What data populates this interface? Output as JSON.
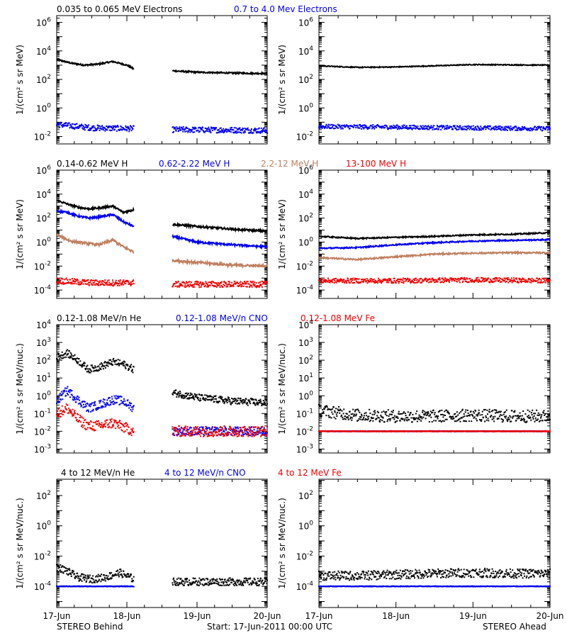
{
  "colors": {
    "black": "#000000",
    "blue": "#0000ee",
    "tan": "#c08060",
    "red": "#ee0000"
  },
  "footer": {
    "left": "STEREO Behind",
    "center": "Start: 17-Jun-2011 00:00 UTC",
    "right": "STEREO Ahead"
  },
  "chart_data": [
    {
      "type": "scatter",
      "panel": "electrons-behind",
      "yscale": "log",
      "ylim": [
        0.003,
        3000000
      ],
      "xlim": [
        0,
        3
      ],
      "xtick_labels": [
        "17-Jun",
        "18-Jun",
        "19-Jun",
        "20-Jun"
      ],
      "ylabel": "1/(cm² s sr MeV)",
      "yticks": [
        {
          "v": 0.01,
          "b": "10",
          "e": "-2"
        },
        {
          "v": 1,
          "b": "10",
          "e": "0"
        },
        {
          "v": 100,
          "b": "10",
          "e": "2"
        },
        {
          "v": 10000,
          "b": "10",
          "e": "4"
        },
        {
          "v": 1000000,
          "b": "10",
          "e": "6"
        }
      ],
      "legend": [
        {
          "text": "0.035 to 0.065 MeV Electrons",
          "color": "black"
        },
        {
          "text": "0.7 to 4.0 Mev Electrons",
          "color": "blue"
        }
      ],
      "gaps": [
        [
          1.1,
          1.65
        ]
      ],
      "series": [
        {
          "name": "0.035 to 0.065 MeV Electrons",
          "color": "black",
          "style": "line",
          "x": [
            0,
            0.2,
            0.4,
            0.6,
            0.8,
            1.0,
            1.1,
            1.65,
            2.0,
            2.5,
            3.0
          ],
          "y": [
            2500,
            1400,
            1000,
            1200,
            1800,
            1000,
            550,
            400,
            320,
            280,
            260
          ],
          "scatter": 0.05
        },
        {
          "name": "0.7 to 4.0 Mev Electrons",
          "color": "blue",
          "style": "dots",
          "x": [
            0,
            0.5,
            1.1,
            1.65,
            2.5,
            3.0
          ],
          "y": [
            0.07,
            0.04,
            0.035,
            0.03,
            0.028,
            0.026
          ],
          "scatter": 0.2
        }
      ]
    },
    {
      "type": "scatter",
      "panel": "electrons-ahead",
      "yscale": "log",
      "ylim": [
        0.003,
        3000000
      ],
      "xlim": [
        0,
        3
      ],
      "xtick_labels": [
        "17-Jun",
        "18-Jun",
        "19-Jun",
        "20-Jun"
      ],
      "ylabel": "1/(cm² s sr MeV)",
      "yticks": [
        {
          "v": 0.01,
          "b": "10",
          "e": "-2"
        },
        {
          "v": 1,
          "b": "10",
          "e": "0"
        },
        {
          "v": 100,
          "b": "10",
          "e": "2"
        },
        {
          "v": 10000,
          "b": "10",
          "e": "4"
        },
        {
          "v": 1000000,
          "b": "10",
          "e": "6"
        }
      ],
      "legend": [],
      "gaps": [],
      "series": [
        {
          "name": "0.035 to 0.065 MeV Electrons",
          "color": "black",
          "style": "line",
          "x": [
            0,
            0.5,
            1.0,
            1.5,
            2.0,
            2.5,
            3.0
          ],
          "y": [
            900,
            700,
            750,
            900,
            1100,
            1050,
            1000
          ],
          "scatter": 0.03
        },
        {
          "name": "0.7 to 4.0 Mev Electrons",
          "color": "blue",
          "style": "dots",
          "x": [
            0,
            1.0,
            2.0,
            3.0
          ],
          "y": [
            0.05,
            0.045,
            0.04,
            0.035
          ],
          "scatter": 0.15
        }
      ]
    },
    {
      "type": "scatter",
      "panel": "protons-behind",
      "yscale": "log",
      "ylim": [
        2e-05,
        1000000
      ],
      "xlim": [
        0,
        3
      ],
      "xtick_labels": [
        "17-Jun",
        "18-Jun",
        "19-Jun",
        "20-Jun"
      ],
      "ylabel": "1/(cm² s sr MeV)",
      "yticks": [
        {
          "v": 0.0001,
          "b": "10",
          "e": "-4"
        },
        {
          "v": 0.01,
          "b": "10",
          "e": "-2"
        },
        {
          "v": 1,
          "b": "10",
          "e": "0"
        },
        {
          "v": 100,
          "b": "10",
          "e": "2"
        },
        {
          "v": 10000,
          "b": "10",
          "e": "4"
        },
        {
          "v": 1000000,
          "b": "10",
          "e": "6"
        }
      ],
      "legend": [
        {
          "text": "0.14-0.62 MeV H",
          "color": "black"
        },
        {
          "text": "0.62-2.22 MeV H",
          "color": "blue"
        },
        {
          "text": "2.2-12 MeV H",
          "color": "tan"
        },
        {
          "text": "13-100 MeV H",
          "color": "red"
        }
      ],
      "gaps": [
        [
          1.1,
          1.65
        ]
      ],
      "series": [
        {
          "name": "0.14-0.62 MeV H",
          "color": "black",
          "style": "line",
          "x": [
            0,
            0.15,
            0.3,
            0.45,
            0.6,
            0.8,
            0.95,
            1.1,
            1.65,
            2.0,
            2.5,
            3.0
          ],
          "y": [
            3000,
            1500,
            800,
            600,
            700,
            1000,
            300,
            500,
            30,
            20,
            12,
            8
          ],
          "scatter": 0.08
        },
        {
          "name": "0.62-2.22 MeV H",
          "color": "blue",
          "style": "line",
          "x": [
            0,
            0.15,
            0.3,
            0.45,
            0.6,
            0.8,
            0.95,
            1.1,
            1.65,
            2.0,
            2.5,
            3.0
          ],
          "y": [
            400,
            300,
            150,
            100,
            120,
            200,
            50,
            20,
            3,
            1,
            0.6,
            0.4
          ],
          "scatter": 0.08
        },
        {
          "name": "2.2-12 MeV H",
          "color": "tan",
          "style": "line",
          "x": [
            0,
            0.2,
            0.4,
            0.6,
            0.8,
            0.95,
            1.1,
            1.65,
            2.0,
            2.5,
            3.0
          ],
          "y": [
            4,
            1.2,
            0.8,
            0.6,
            1.5,
            0.4,
            0.15,
            0.03,
            0.02,
            0.012,
            0.01
          ],
          "scatter": 0.1
        },
        {
          "name": "13-100 MeV H",
          "color": "red",
          "style": "dots",
          "x": [
            0,
            0.5,
            1.1,
            1.65,
            2.5,
            3.0
          ],
          "y": [
            0.0006,
            0.0004,
            0.0004,
            0.0003,
            0.0003,
            0.0003
          ],
          "scatter": 0.25
        }
      ]
    },
    {
      "type": "scatter",
      "panel": "protons-ahead",
      "yscale": "log",
      "ylim": [
        2e-05,
        1000000
      ],
      "xlim": [
        0,
        3
      ],
      "xtick_labels": [
        "17-Jun",
        "18-Jun",
        "19-Jun",
        "20-Jun"
      ],
      "ylabel": "1/(cm² s sr MeV)",
      "yticks": [
        {
          "v": 0.0001,
          "b": "10",
          "e": "-4"
        },
        {
          "v": 0.01,
          "b": "10",
          "e": "-2"
        },
        {
          "v": 1,
          "b": "10",
          "e": "0"
        },
        {
          "v": 100,
          "b": "10",
          "e": "2"
        },
        {
          "v": 10000,
          "b": "10",
          "e": "4"
        },
        {
          "v": 1000000,
          "b": "10",
          "e": "6"
        }
      ],
      "legend": [],
      "gaps": [],
      "series": [
        {
          "name": "0.14-0.62 MeV H",
          "color": "black",
          "style": "line",
          "x": [
            0,
            0.5,
            1.0,
            1.5,
            2.0,
            2.5,
            3.0
          ],
          "y": [
            3,
            2,
            2.5,
            3,
            4,
            4.5,
            6
          ],
          "scatter": 0.05
        },
        {
          "name": "0.62-2.22 MeV H",
          "color": "blue",
          "style": "line",
          "x": [
            0,
            0.5,
            1.0,
            1.5,
            2.0,
            2.5,
            3.0
          ],
          "y": [
            0.3,
            0.35,
            0.6,
            0.9,
            1.2,
            1.4,
            1.6
          ],
          "scatter": 0.05
        },
        {
          "name": "2.2-12 MeV H",
          "color": "tan",
          "style": "line",
          "x": [
            0,
            0.5,
            1.0,
            1.5,
            2.0,
            2.5,
            3.0
          ],
          "y": [
            0.05,
            0.035,
            0.06,
            0.1,
            0.12,
            0.13,
            0.13
          ],
          "scatter": 0.06
        },
        {
          "name": "13-100 MeV H",
          "color": "red",
          "style": "dots",
          "x": [
            0,
            1.0,
            2.0,
            3.0
          ],
          "y": [
            0.0006,
            0.0006,
            0.0007,
            0.0006
          ],
          "scatter": 0.2
        }
      ]
    },
    {
      "type": "scatter",
      "panel": "heavy-ions-behind",
      "yscale": "log",
      "ylim": [
        0.0006,
        10000
      ],
      "xlim": [
        0,
        3
      ],
      "xtick_labels": [
        "17-Jun",
        "18-Jun",
        "19-Jun",
        "20-Jun"
      ],
      "ylabel": "1/(cm² s sr MeV/nuc.)",
      "yticks": [
        {
          "v": 0.001,
          "b": "10",
          "e": "-3"
        },
        {
          "v": 0.01,
          "b": "10",
          "e": "-2"
        },
        {
          "v": 0.1,
          "b": "10",
          "e": "-1"
        },
        {
          "v": 1,
          "b": "10",
          "e": "0"
        },
        {
          "v": 10,
          "b": "10",
          "e": "1"
        },
        {
          "v": 100,
          "b": "10",
          "e": "2"
        },
        {
          "v": 1000,
          "b": "10",
          "e": "3"
        },
        {
          "v": 10000,
          "b": "10",
          "e": "4"
        }
      ],
      "legend": [
        {
          "text": "0.12-1.08 MeV/n He",
          "color": "black"
        },
        {
          "text": "0.12-1.08 MeV/n CNO",
          "color": "blue"
        },
        {
          "text": "0.12-1.08 MeV Fe",
          "color": "red"
        }
      ],
      "gaps": [
        [
          1.1,
          1.65
        ]
      ],
      "series": [
        {
          "name": "0.12-1.08 MeV/n He",
          "color": "black",
          "style": "dots",
          "x": [
            0,
            0.15,
            0.3,
            0.45,
            0.6,
            0.8,
            0.95,
            1.1,
            1.65,
            2.0,
            2.5,
            3.0
          ],
          "y": [
            150,
            250,
            100,
            30,
            40,
            80,
            60,
            30,
            1.5,
            0.8,
            0.5,
            0.4
          ],
          "scatter": 0.2
        },
        {
          "name": "0.12-1.08 MeV/n CNO",
          "color": "blue",
          "style": "dots",
          "x": [
            0,
            0.15,
            0.3,
            0.45,
            0.6,
            0.8,
            0.95,
            1.1,
            1.65,
            3.0
          ],
          "y": [
            0.5,
            2,
            0.6,
            0.2,
            0.3,
            0.6,
            0.5,
            0.2,
            0.01,
            0.01
          ],
          "scatter": 0.25
        },
        {
          "name": "0.12-1.08 MeV Fe",
          "color": "red",
          "style": "dots",
          "x": [
            0,
            0.15,
            0.3,
            0.45,
            0.6,
            0.8,
            1.1,
            1.65,
            3.0
          ],
          "y": [
            0.1,
            0.2,
            0.05,
            0.02,
            0.02,
            0.03,
            0.01,
            0.01,
            0.01
          ],
          "scatter": 0.3
        }
      ]
    },
    {
      "type": "scatter",
      "panel": "heavy-ions-ahead",
      "yscale": "log",
      "ylim": [
        0.0006,
        10000
      ],
      "xlim": [
        0,
        3
      ],
      "xtick_labels": [
        "17-Jun",
        "18-Jun",
        "19-Jun",
        "20-Jun"
      ],
      "ylabel": "1/(cm² s sr MeV/nuc.)",
      "yticks": [
        {
          "v": 0.001,
          "b": "10",
          "e": "-3"
        },
        {
          "v": 0.01,
          "b": "10",
          "e": "-2"
        },
        {
          "v": 0.1,
          "b": "10",
          "e": "-1"
        },
        {
          "v": 1,
          "b": "10",
          "e": "0"
        },
        {
          "v": 10,
          "b": "10",
          "e": "1"
        },
        {
          "v": 100,
          "b": "10",
          "e": "2"
        },
        {
          "v": 1000,
          "b": "10",
          "e": "3"
        },
        {
          "v": 10000,
          "b": "10",
          "e": "4"
        }
      ],
      "legend": [],
      "gaps": [],
      "series": [
        {
          "name": "0.12-1.08 MeV/n He",
          "color": "black",
          "style": "dots",
          "x": [
            0,
            0.5,
            1.0,
            1.5,
            2.0,
            2.5,
            3.0
          ],
          "y": [
            0.15,
            0.08,
            0.07,
            0.07,
            0.08,
            0.07,
            0.07
          ],
          "scatter": 0.35
        },
        {
          "name": "0.12-1.08 MeV/n CNO",
          "color": "blue",
          "style": "dots",
          "x": [
            0,
            3.0
          ],
          "y": [
            0.01,
            0.01
          ],
          "scatter": 0.02
        },
        {
          "name": "0.12-1.08 MeV Fe",
          "color": "red",
          "style": "dots",
          "x": [
            0,
            3.0
          ],
          "y": [
            0.01,
            0.01
          ],
          "scatter": 0.02
        }
      ]
    },
    {
      "type": "scatter",
      "panel": "high-energy-ions-behind",
      "yscale": "log",
      "ylim": [
        4e-06,
        1200
      ],
      "xlim": [
        0,
        3
      ],
      "xtick_labels": [
        "17-Jun",
        "18-Jun",
        "19-Jun",
        "20-Jun"
      ],
      "ylabel": "1/(cm² s sr MeV/nuc.)",
      "yticks": [
        {
          "v": 0.0001,
          "b": "10",
          "e": "-4"
        },
        {
          "v": 0.01,
          "b": "10",
          "e": "-2"
        },
        {
          "v": 1,
          "b": "10",
          "e": "0"
        },
        {
          "v": 100,
          "b": "10",
          "e": "2"
        }
      ],
      "legend": [
        {
          "text": "4 to 12 MeV/n He",
          "color": "black"
        },
        {
          "text": "4 to 12 MeV/n CNO",
          "color": "blue"
        },
        {
          "text": "4 to 12 MeV Fe",
          "color": "red"
        }
      ],
      "gaps": [
        [
          1.1,
          1.65
        ]
      ],
      "series": [
        {
          "name": "4 to 12 MeV/n He",
          "color": "black",
          "style": "dots",
          "x": [
            0,
            0.15,
            0.3,
            0.5,
            0.7,
            0.9,
            1.1,
            1.65,
            2.0,
            2.5,
            3.0
          ],
          "y": [
            0.002,
            0.001,
            0.0004,
            0.0003,
            0.0004,
            0.0008,
            0.0003,
            0.0002,
            0.0002,
            0.0002,
            0.0002
          ],
          "scatter": 0.25
        },
        {
          "name": "4 to 12 MeV/n CNO",
          "color": "blue",
          "style": "dots",
          "x": [
            0,
            0.5,
            1.1
          ],
          "y": [
            0.0001,
            0.0001,
            0.0001
          ],
          "scatter": 0.02
        }
      ]
    },
    {
      "type": "scatter",
      "panel": "high-energy-ions-ahead",
      "yscale": "log",
      "ylim": [
        4e-06,
        1200
      ],
      "xlim": [
        0,
        3
      ],
      "xtick_labels": [
        "17-Jun",
        "18-Jun",
        "19-Jun",
        "20-Jun"
      ],
      "ylabel": "1/(cm² s sr MeV/nuc.)",
      "yticks": [
        {
          "v": 0.0001,
          "b": "10",
          "e": "-4"
        },
        {
          "v": 0.01,
          "b": "10",
          "e": "-2"
        },
        {
          "v": 1,
          "b": "10",
          "e": "0"
        },
        {
          "v": 100,
          "b": "10",
          "e": "2"
        }
      ],
      "legend": [],
      "gaps": [],
      "series": [
        {
          "name": "4 to 12 MeV/n He",
          "color": "black",
          "style": "dots",
          "x": [
            0,
            0.5,
            1.0,
            1.5,
            2.0,
            2.5,
            3.0
          ],
          "y": [
            0.0005,
            0.0005,
            0.0006,
            0.0007,
            0.0008,
            0.0007,
            0.0007
          ],
          "scatter": 0.3
        },
        {
          "name": "4 to 12 MeV/n CNO",
          "color": "blue",
          "style": "dots",
          "x": [
            0,
            1.0,
            2.0,
            3.0
          ],
          "y": [
            0.0001,
            0.0001,
            0.0001,
            0.0001
          ],
          "scatter": 0.02
        }
      ]
    }
  ]
}
